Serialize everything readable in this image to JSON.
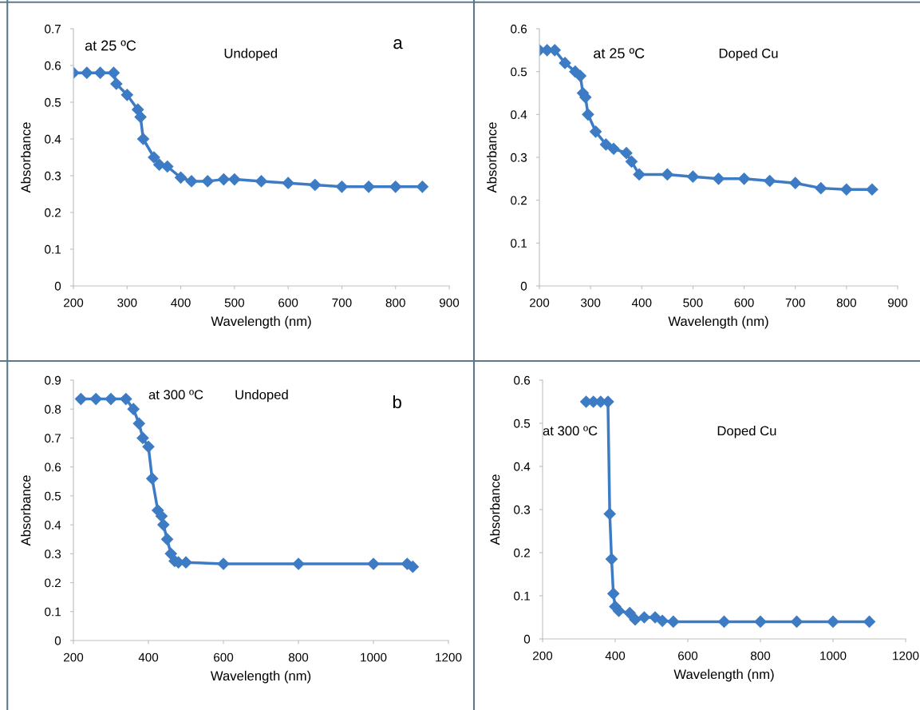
{
  "chart_data": [
    {
      "type": "line",
      "xlabel": "Wavelength (nm)",
      "ylabel": "Absorbance",
      "annotations": [
        "at 25 ºC",
        "Undoped",
        "a"
      ],
      "xlim": [
        200,
        900
      ],
      "xticks": [
        200,
        300,
        400,
        500,
        600,
        700,
        800,
        900
      ],
      "ylim": [
        0,
        0.7
      ],
      "yticks": [
        0,
        0.1,
        0.2,
        0.3,
        0.4,
        0.5,
        0.6,
        0.7
      ],
      "marker": "diamond",
      "line_style": "solid",
      "grid": false,
      "legend": false,
      "series": [
        {
          "color": "#3d7cc4",
          "x": [
            200,
            225,
            250,
            275,
            280,
            300,
            320,
            325,
            330,
            350,
            360,
            375,
            400,
            420,
            450,
            480,
            500,
            550,
            600,
            650,
            700,
            750,
            800,
            850
          ],
          "values": [
            0.58,
            0.58,
            0.58,
            0.58,
            0.55,
            0.52,
            0.48,
            0.46,
            0.4,
            0.35,
            0.33,
            0.325,
            0.295,
            0.285,
            0.285,
            0.29,
            0.29,
            0.285,
            0.28,
            0.275,
            0.27,
            0.27,
            0.27,
            0.27
          ]
        }
      ]
    },
    {
      "type": "line",
      "xlabel": "Wavelength (nm)",
      "ylabel": "Absorbance",
      "annotations": [
        "at 25 ºC",
        "Doped Cu"
      ],
      "xlim": [
        200,
        900
      ],
      "xticks": [
        200,
        300,
        400,
        500,
        600,
        700,
        800,
        900
      ],
      "ylim": [
        0,
        0.6
      ],
      "yticks": [
        0,
        0.1,
        0.2,
        0.3,
        0.4,
        0.5,
        0.6
      ],
      "marker": "diamond",
      "line_style": "solid",
      "grid": false,
      "legend": false,
      "series": [
        {
          "color": "#3d7cc4",
          "x": [
            200,
            215,
            230,
            250,
            270,
            280,
            285,
            290,
            295,
            310,
            330,
            345,
            370,
            380,
            395,
            450,
            500,
            550,
            600,
            650,
            700,
            750,
            800,
            850
          ],
          "values": [
            0.55,
            0.55,
            0.55,
            0.52,
            0.5,
            0.49,
            0.45,
            0.44,
            0.4,
            0.36,
            0.33,
            0.32,
            0.31,
            0.29,
            0.26,
            0.26,
            0.255,
            0.25,
            0.25,
            0.245,
            0.24,
            0.228,
            0.225,
            0.225
          ]
        }
      ]
    },
    {
      "type": "line",
      "xlabel": "Wavelength (nm)",
      "ylabel": "Absorbance",
      "annotations": [
        "at 300 ºC",
        "Undoped",
        "b"
      ],
      "xlim": [
        200,
        1200
      ],
      "xticks": [
        200,
        400,
        600,
        800,
        1000,
        1200
      ],
      "ylim": [
        0,
        0.9
      ],
      "yticks": [
        0,
        0.1,
        0.2,
        0.3,
        0.4,
        0.5,
        0.6,
        0.7,
        0.8,
        0.9
      ],
      "marker": "diamond",
      "line_style": "solid",
      "grid": false,
      "legend": false,
      "series": [
        {
          "color": "#3d7cc4",
          "x": [
            220,
            260,
            300,
            340,
            360,
            375,
            385,
            400,
            410,
            425,
            435,
            440,
            450,
            460,
            470,
            480,
            500,
            600,
            800,
            1000,
            1090,
            1105
          ],
          "values": [
            0.835,
            0.835,
            0.835,
            0.835,
            0.8,
            0.75,
            0.7,
            0.67,
            0.56,
            0.45,
            0.43,
            0.4,
            0.35,
            0.3,
            0.275,
            0.27,
            0.27,
            0.265,
            0.265,
            0.265,
            0.265,
            0.255
          ]
        }
      ]
    },
    {
      "type": "line",
      "xlabel": "Wavelength (nm)",
      "ylabel": "Absorbance",
      "annotations": [
        "at 300 ºC",
        "Doped Cu"
      ],
      "xlim": [
        200,
        1200
      ],
      "xticks": [
        200,
        400,
        600,
        800,
        1000,
        1200
      ],
      "ylim": [
        0,
        0.6
      ],
      "yticks": [
        0,
        0.1,
        0.2,
        0.3,
        0.4,
        0.5,
        0.6
      ],
      "marker": "diamond",
      "line_style": "solid",
      "grid": false,
      "legend": false,
      "series": [
        {
          "color": "#3d7cc4",
          "x": [
            320,
            340,
            360,
            380,
            385,
            390,
            395,
            400,
            410,
            440,
            455,
            480,
            510,
            530,
            560,
            700,
            800,
            900,
            1000,
            1100
          ],
          "values": [
            0.55,
            0.55,
            0.55,
            0.55,
            0.29,
            0.185,
            0.105,
            0.075,
            0.065,
            0.06,
            0.045,
            0.05,
            0.05,
            0.042,
            0.04,
            0.04,
            0.04,
            0.04,
            0.04,
            0.04
          ]
        }
      ]
    }
  ]
}
